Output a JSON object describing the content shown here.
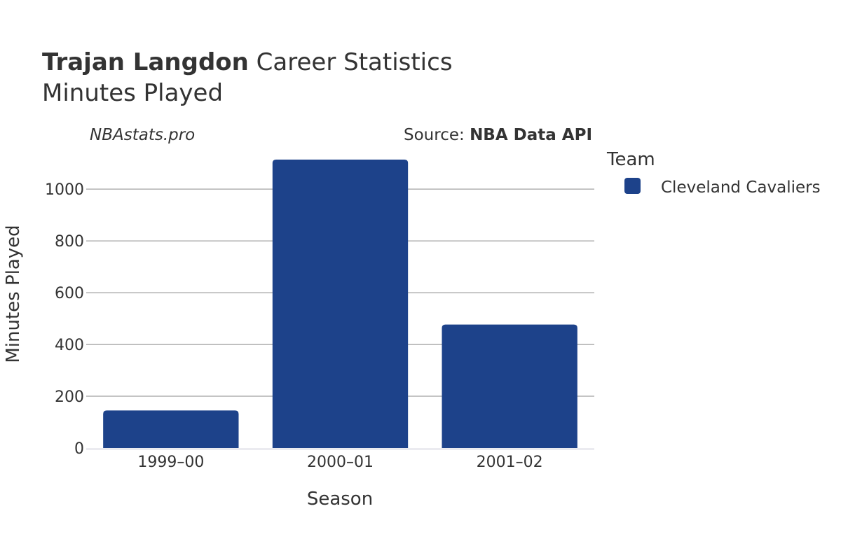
{
  "header": {
    "title_bold": "Trajan Langdon",
    "title_rest": " Career Statistics",
    "subtitle": "Minutes Played",
    "watermark": "NBAstats.pro",
    "source_prefix": "Source: ",
    "source_name": "NBA Data API"
  },
  "legend": {
    "title": "Team",
    "items": [
      {
        "label": "Cleveland Cavaliers",
        "color": "#1d428a"
      }
    ]
  },
  "chart_data": {
    "type": "bar",
    "title": "Trajan Langdon Career Statistics",
    "subtitle": "Minutes Played",
    "xlabel": "Season",
    "ylabel": "Minutes Played",
    "categories": [
      "1999–00",
      "2000–01",
      "2001–02"
    ],
    "series": [
      {
        "name": "Cleveland Cavaliers",
        "values": [
          145,
          1114,
          477
        ],
        "color": "#1d428a"
      }
    ],
    "ylim": [
      0,
      1114
    ],
    "yticks": [
      0,
      200,
      400,
      600,
      800,
      1000
    ],
    "grid": true,
    "legend_position": "right"
  }
}
